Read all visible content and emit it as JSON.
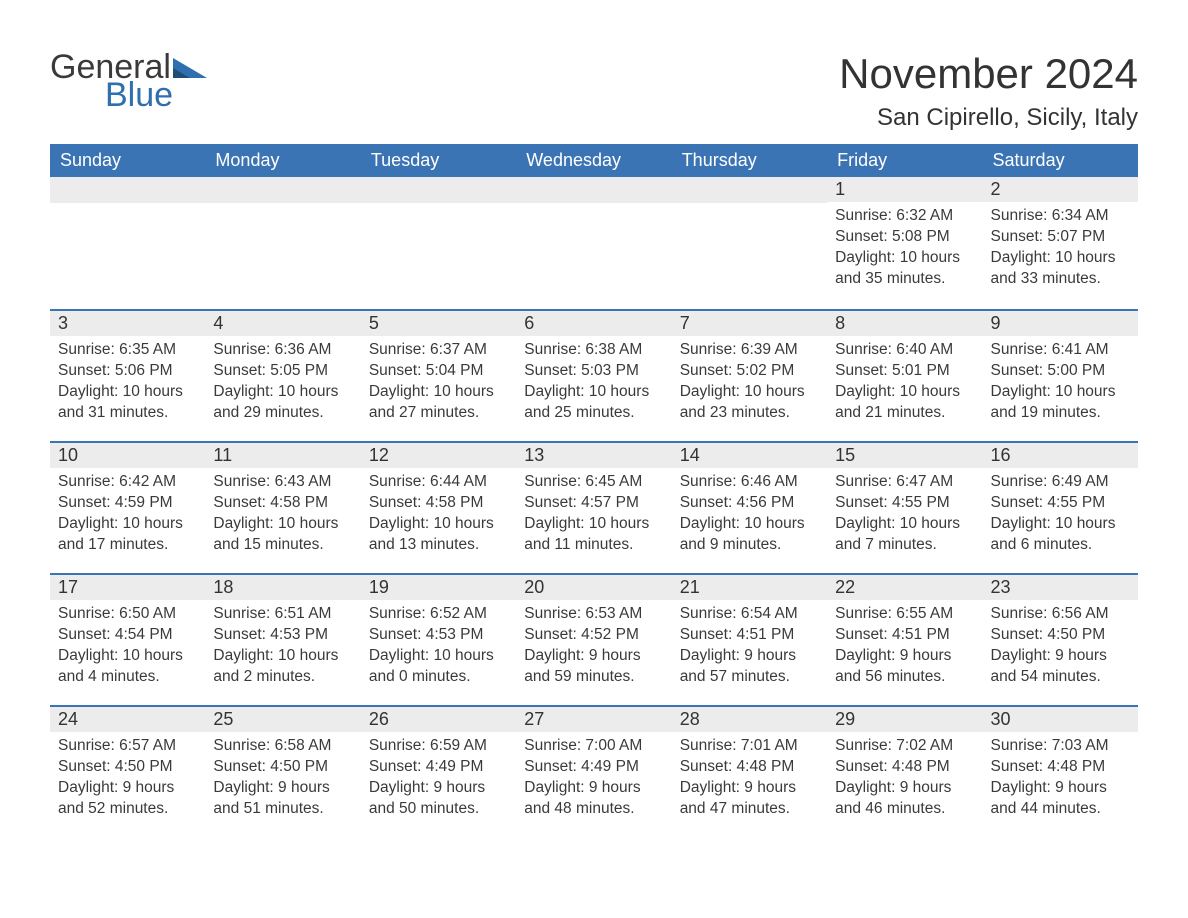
{
  "logo": {
    "general": "General",
    "blue": "Blue"
  },
  "title": "November 2024",
  "location": "San Cipirello, Sicily, Italy",
  "colors": {
    "header_bg": "#3b74b4",
    "header_text": "#ffffff",
    "daynum_bg": "#ececec",
    "border_top": "#3b74b4",
    "text": "#3a3a3a",
    "logo_blue": "#2f6fae"
  },
  "weekdays": [
    "Sunday",
    "Monday",
    "Tuesday",
    "Wednesday",
    "Thursday",
    "Friday",
    "Saturday"
  ],
  "weeks": [
    [
      null,
      null,
      null,
      null,
      null,
      {
        "num": "1",
        "sunrise": "6:32 AM",
        "sunset": "5:08 PM",
        "daylight": "10 hours and 35 minutes."
      },
      {
        "num": "2",
        "sunrise": "6:34 AM",
        "sunset": "5:07 PM",
        "daylight": "10 hours and 33 minutes."
      }
    ],
    [
      {
        "num": "3",
        "sunrise": "6:35 AM",
        "sunset": "5:06 PM",
        "daylight": "10 hours and 31 minutes."
      },
      {
        "num": "4",
        "sunrise": "6:36 AM",
        "sunset": "5:05 PM",
        "daylight": "10 hours and 29 minutes."
      },
      {
        "num": "5",
        "sunrise": "6:37 AM",
        "sunset": "5:04 PM",
        "daylight": "10 hours and 27 minutes."
      },
      {
        "num": "6",
        "sunrise": "6:38 AM",
        "sunset": "5:03 PM",
        "daylight": "10 hours and 25 minutes."
      },
      {
        "num": "7",
        "sunrise": "6:39 AM",
        "sunset": "5:02 PM",
        "daylight": "10 hours and 23 minutes."
      },
      {
        "num": "8",
        "sunrise": "6:40 AM",
        "sunset": "5:01 PM",
        "daylight": "10 hours and 21 minutes."
      },
      {
        "num": "9",
        "sunrise": "6:41 AM",
        "sunset": "5:00 PM",
        "daylight": "10 hours and 19 minutes."
      }
    ],
    [
      {
        "num": "10",
        "sunrise": "6:42 AM",
        "sunset": "4:59 PM",
        "daylight": "10 hours and 17 minutes."
      },
      {
        "num": "11",
        "sunrise": "6:43 AM",
        "sunset": "4:58 PM",
        "daylight": "10 hours and 15 minutes."
      },
      {
        "num": "12",
        "sunrise": "6:44 AM",
        "sunset": "4:58 PM",
        "daylight": "10 hours and 13 minutes."
      },
      {
        "num": "13",
        "sunrise": "6:45 AM",
        "sunset": "4:57 PM",
        "daylight": "10 hours and 11 minutes."
      },
      {
        "num": "14",
        "sunrise": "6:46 AM",
        "sunset": "4:56 PM",
        "daylight": "10 hours and 9 minutes."
      },
      {
        "num": "15",
        "sunrise": "6:47 AM",
        "sunset": "4:55 PM",
        "daylight": "10 hours and 7 minutes."
      },
      {
        "num": "16",
        "sunrise": "6:49 AM",
        "sunset": "4:55 PM",
        "daylight": "10 hours and 6 minutes."
      }
    ],
    [
      {
        "num": "17",
        "sunrise": "6:50 AM",
        "sunset": "4:54 PM",
        "daylight": "10 hours and 4 minutes."
      },
      {
        "num": "18",
        "sunrise": "6:51 AM",
        "sunset": "4:53 PM",
        "daylight": "10 hours and 2 minutes."
      },
      {
        "num": "19",
        "sunrise": "6:52 AM",
        "sunset": "4:53 PM",
        "daylight": "10 hours and 0 minutes."
      },
      {
        "num": "20",
        "sunrise": "6:53 AM",
        "sunset": "4:52 PM",
        "daylight": "9 hours and 59 minutes."
      },
      {
        "num": "21",
        "sunrise": "6:54 AM",
        "sunset": "4:51 PM",
        "daylight": "9 hours and 57 minutes."
      },
      {
        "num": "22",
        "sunrise": "6:55 AM",
        "sunset": "4:51 PM",
        "daylight": "9 hours and 56 minutes."
      },
      {
        "num": "23",
        "sunrise": "6:56 AM",
        "sunset": "4:50 PM",
        "daylight": "9 hours and 54 minutes."
      }
    ],
    [
      {
        "num": "24",
        "sunrise": "6:57 AM",
        "sunset": "4:50 PM",
        "daylight": "9 hours and 52 minutes."
      },
      {
        "num": "25",
        "sunrise": "6:58 AM",
        "sunset": "4:50 PM",
        "daylight": "9 hours and 51 minutes."
      },
      {
        "num": "26",
        "sunrise": "6:59 AM",
        "sunset": "4:49 PM",
        "daylight": "9 hours and 50 minutes."
      },
      {
        "num": "27",
        "sunrise": "7:00 AM",
        "sunset": "4:49 PM",
        "daylight": "9 hours and 48 minutes."
      },
      {
        "num": "28",
        "sunrise": "7:01 AM",
        "sunset": "4:48 PM",
        "daylight": "9 hours and 47 minutes."
      },
      {
        "num": "29",
        "sunrise": "7:02 AM",
        "sunset": "4:48 PM",
        "daylight": "9 hours and 46 minutes."
      },
      {
        "num": "30",
        "sunrise": "7:03 AM",
        "sunset": "4:48 PM",
        "daylight": "9 hours and 44 minutes."
      }
    ]
  ],
  "labels": {
    "sunrise": "Sunrise: ",
    "sunset": "Sunset: ",
    "daylight": "Daylight: "
  }
}
